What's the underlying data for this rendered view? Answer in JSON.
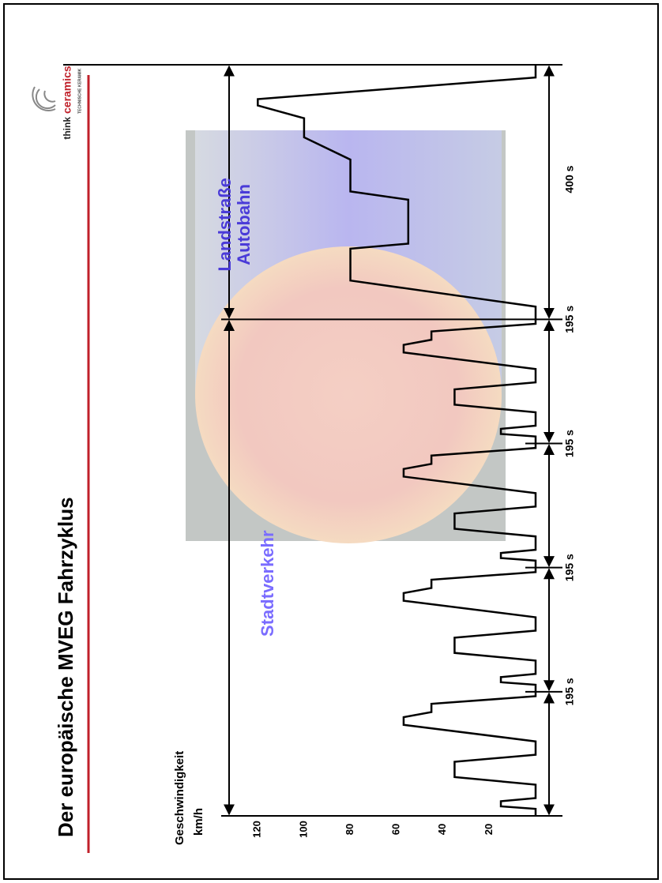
{
  "title": "Der europäische MVEG Fahrzyklus",
  "logo": {
    "word1": "think",
    "word2": "ceramics",
    "tagline": "TECHNISCHE KERAMIK"
  },
  "chart_data": {
    "type": "line",
    "y_label": [
      "Geschwindigkeit",
      "km/h"
    ],
    "x": [
      0,
      11,
      15,
      23,
      28,
      49,
      61,
      85,
      96,
      117,
      143,
      155,
      163,
      176,
      188,
      195,
      206,
      210,
      218,
      223,
      244,
      256,
      280,
      291,
      312,
      338,
      350,
      358,
      371,
      383,
      390,
      401,
      405,
      413,
      418,
      439,
      451,
      475,
      486,
      507,
      533,
      545,
      553,
      566,
      578,
      585,
      596,
      600,
      608,
      613,
      634,
      646,
      670,
      681,
      702,
      728,
      740,
      748,
      761,
      773,
      780,
      800,
      841,
      891,
      899,
      968,
      981,
      1031,
      1066,
      1096,
      1116,
      1126,
      1160,
      1180
    ],
    "values": [
      0,
      0,
      15,
      15,
      0,
      0,
      35,
      35,
      0,
      0,
      57,
      57,
      45,
      45,
      0,
      0,
      0,
      15,
      15,
      0,
      0,
      35,
      35,
      0,
      0,
      57,
      57,
      45,
      45,
      0,
      0,
      0,
      15,
      15,
      0,
      0,
      35,
      35,
      0,
      0,
      57,
      57,
      45,
      45,
      0,
      0,
      0,
      15,
      15,
      0,
      0,
      35,
      35,
      0,
      0,
      57,
      57,
      45,
      45,
      0,
      0,
      0,
      80,
      80,
      55,
      55,
      80,
      80,
      100,
      100,
      120,
      120,
      0,
      0
    ],
    "color": "#000000",
    "xlim": [
      0,
      1180
    ],
    "ylim": [
      0,
      130
    ],
    "yticks": [
      20,
      40,
      60,
      80,
      100,
      120
    ],
    "segments": [
      {
        "value": 195,
        "label": "195 s"
      },
      {
        "value": 195,
        "label": "195 s"
      },
      {
        "value": 195,
        "label": "195 s"
      },
      {
        "value": 195,
        "label": "195 s"
      },
      {
        "value": 400,
        "label": "400 s"
      }
    ],
    "annotations": [
      "Stadtverkehr",
      "Landstraße",
      "Autobahn"
    ]
  }
}
